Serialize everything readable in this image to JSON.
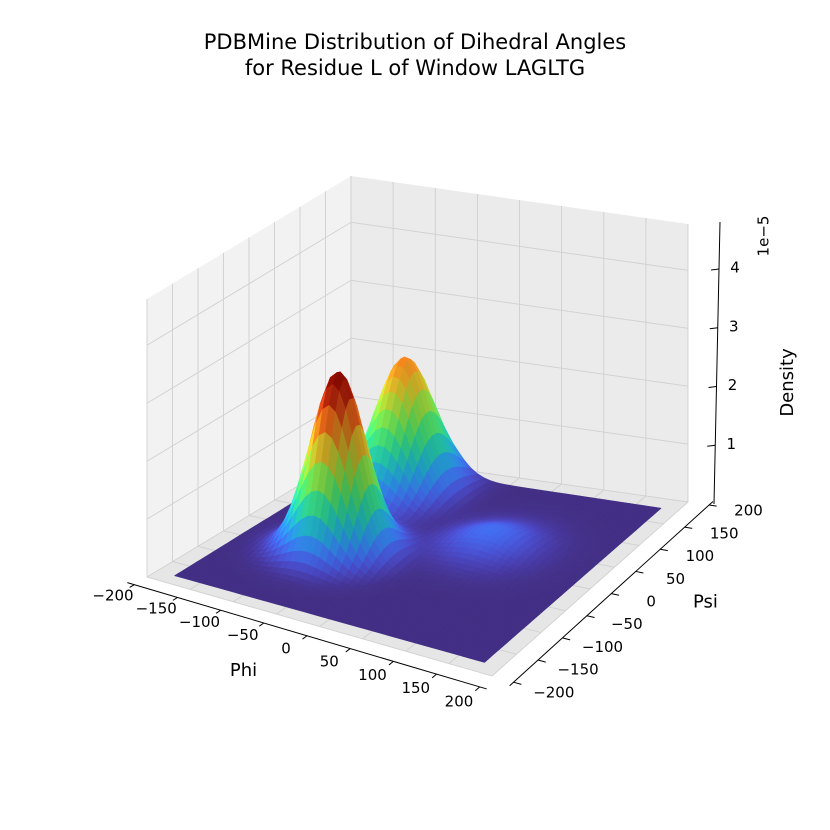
{
  "chart_data": {
    "type": "surface3d",
    "title_line1": "PDBMine Distribution of Dihedral Angles",
    "title_line2": "for Residue L of Window LAGLTG",
    "xlabel": "Phi",
    "ylabel": "Psi",
    "zlabel": "Density",
    "z_scale_label": "1e−5",
    "xlim": [
      -200,
      200
    ],
    "ylim": [
      -200,
      200
    ],
    "zlim": [
      0,
      4.8
    ],
    "x_ticks": [
      -200,
      -150,
      -100,
      -50,
      0,
      50,
      100,
      150,
      200
    ],
    "x_tick_labels": [
      "−200",
      "−150",
      "−100",
      "−50",
      "0",
      "50",
      "100",
      "150",
      "200"
    ],
    "y_ticks": [
      -200,
      -150,
      -100,
      -50,
      0,
      50,
      100,
      150,
      200
    ],
    "y_tick_labels": [
      "−200",
      "−150",
      "−100",
      "−50",
      "0",
      "50",
      "100",
      "150",
      "200"
    ],
    "z_ticks": [
      1,
      2,
      3,
      4
    ],
    "z_tick_labels": [
      "1",
      "2",
      "3",
      "4"
    ],
    "colormap": "turbo",
    "grid": true,
    "peaks": [
      {
        "phi": -75,
        "psi": -35,
        "height": 3.1,
        "sigma_phi": 28,
        "sigma_psi": 30
      },
      {
        "phi": -95,
        "psi": 130,
        "height": 2.3,
        "sigma_phi": 28,
        "sigma_psi": 38
      },
      {
        "phi": 60,
        "psi": 40,
        "height": 0.3,
        "sigma_phi": 35,
        "sigma_psi": 35
      }
    ]
  }
}
